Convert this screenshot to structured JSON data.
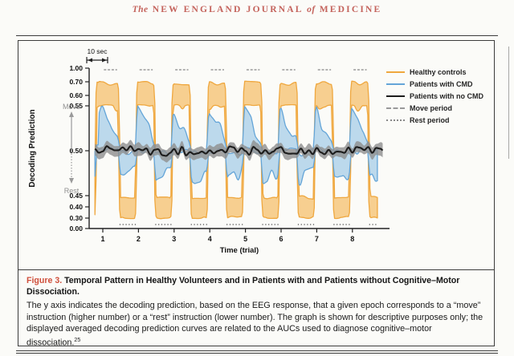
{
  "header": {
    "prefix": "The",
    "main": "NEW ENGLAND JOURNAL",
    "of": "of",
    "end": "MEDICINE"
  },
  "chart_data": {
    "type": "area",
    "title": "",
    "xlabel": "Time (trial)",
    "ylabel": "Decoding Prediction",
    "x_ticks": [
      1,
      2,
      3,
      4,
      5,
      6,
      7,
      8
    ],
    "y_ticks": [
      "1.00",
      "0.70",
      "0.60",
      "0.55",
      "0.50",
      "0.45",
      "0.40",
      "0.30",
      "0.00"
    ],
    "y_axis_nonlinear": true,
    "ylim": [
      0,
      1
    ],
    "scale_bar_label": "10 sec",
    "axis_annotations": {
      "move": "Move",
      "rest": "Rest"
    },
    "trials": 8,
    "move_period_fraction": [
      0.0,
      0.45
    ],
    "rest_period_fraction": [
      0.45,
      1.0
    ],
    "legend": [
      {
        "label": "Healthy controls",
        "swatch": "orange-line"
      },
      {
        "label": "Patients with CMD",
        "swatch": "blue-line"
      },
      {
        "label": "Patients with no CMD",
        "swatch": "black-line"
      },
      {
        "label": "Move period",
        "swatch": "gray-line"
      },
      {
        "label": "Rest period",
        "swatch": "gray-dotted"
      }
    ],
    "series": [
      {
        "name": "Healthy controls",
        "band": {
          "move": {
            "upper": 0.7,
            "lower": 0.55
          },
          "rest": {
            "upper": 0.44,
            "lower": 0.3
          }
        }
      },
      {
        "name": "Patients with CMD",
        "band": {
          "move": {
            "upper": 0.545,
            "lower": 0.5
          },
          "rest": {
            "upper": 0.498,
            "lower": 0.466
          }
        }
      },
      {
        "name": "Patients with no CMD",
        "band": {
          "move": {
            "upper": 0.506,
            "lower": 0.494
          },
          "rest": {
            "upper": 0.506,
            "lower": 0.494
          }
        }
      }
    ]
  },
  "caption": {
    "label": "Figure 3.",
    "title": "Temporal Pattern in Healthy Volunteers and in Patients with and Patients without Cognitive–Motor Dissociation.",
    "body": "The y axis indicates the decoding prediction, based on the EEG response, that a given epoch corresponds to a “move” instruction (higher number) or a “rest” instruction (lower number). The graph is shown for descriptive purposes only; the displayed averaged decoding prediction curves are related to the AUCs used to diagnose cognitive–motor dissociation.",
    "reference_superscript": "25"
  },
  "colors": {
    "orange": "#EFA73E",
    "orange_fill": "#F7CF90",
    "blue": "#64A5D8",
    "blue_fill": "#BCD9EC",
    "black": "#1C1C1C",
    "gray_band": "#8F8F8F",
    "gray": "#999999",
    "accent_red": "#CF4F3B",
    "header_red": "#C4635C"
  }
}
